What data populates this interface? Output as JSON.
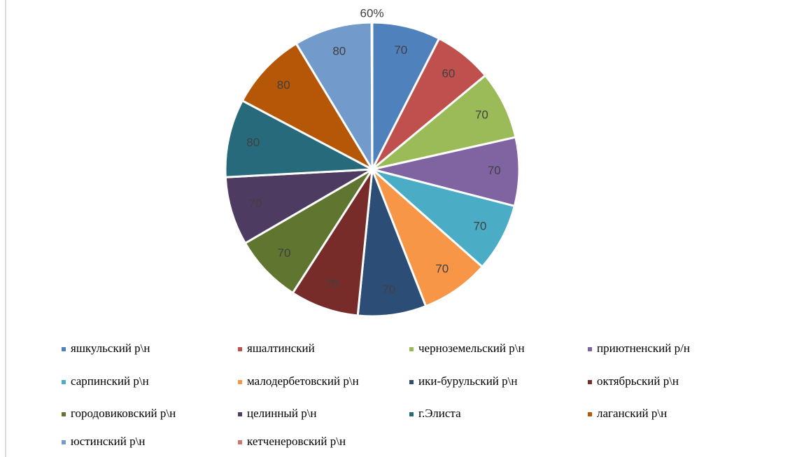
{
  "chart_data": {
    "type": "pie",
    "categories": [
      "яшкульский р\\н",
      "яшалтинский",
      "черноземельский р\\н",
      "приютненский р/н",
      "сарпинский р\\н",
      "малодербетовский р\\н",
      "ики-бурульский р\\н",
      "октябрьский р\\н",
      "городовиковский р\\н",
      "целинный р\\н",
      "г.Элиста",
      "лаганский р\\н",
      "юстинский р\\н",
      "кетченеровский р\\н"
    ],
    "values": [
      70,
      60,
      70,
      70,
      70,
      70,
      70,
      70,
      70,
      70,
      80,
      80,
      80,
      0.6
    ],
    "value_labels": [
      "70",
      "60",
      "70",
      "70",
      "70",
      "70",
      "70",
      "70",
      "70",
      "70",
      "80",
      "80",
      "80",
      "60%"
    ],
    "colors": [
      "#4f81bd",
      "#c0504d",
      "#9bbb59",
      "#8064a2",
      "#4bacc6",
      "#f79646",
      "#2c4d75",
      "#772c2a",
      "#5f7530",
      "#4d3b62",
      "#276a7c",
      "#b65708",
      "#729aca",
      "#cd7371"
    ],
    "legend": "bottom"
  }
}
